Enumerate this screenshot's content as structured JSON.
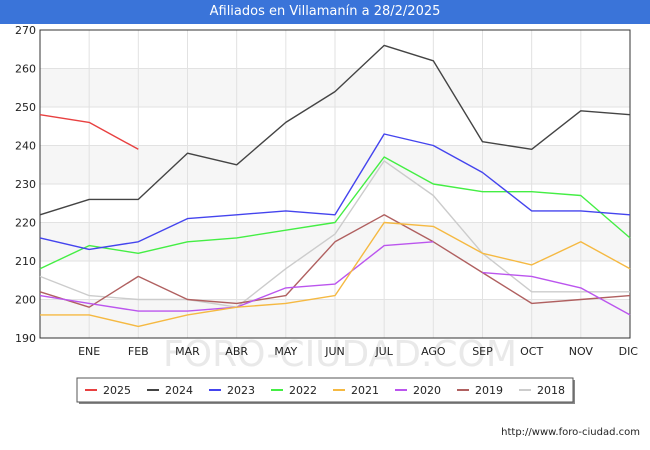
{
  "title": "Afiliados en Villamanín a 28/2/2025",
  "watermark": "FORO-CIUDAD.COM",
  "footer_url": "http://www.foro-ciudad.com",
  "chart_data": {
    "type": "line",
    "title": "Afiliados en Villamanín a 28/2/2025",
    "categories": [
      "",
      "ENE",
      "FEB",
      "MAR",
      "ABR",
      "MAY",
      "JUN",
      "JUL",
      "AGO",
      "SEP",
      "OCT",
      "NOV",
      "DIC"
    ],
    "ylim": [
      190,
      270
    ],
    "yticks": [
      190,
      200,
      210,
      220,
      230,
      240,
      250,
      260,
      270
    ],
    "grid": true,
    "legend_position": "bottom",
    "series": [
      {
        "name": "2025",
        "color": "#e84040",
        "values": [
          248,
          246,
          239,
          null,
          null,
          null,
          null,
          null,
          null,
          null,
          null,
          null,
          null
        ]
      },
      {
        "name": "2024",
        "color": "#444444",
        "values": [
          222,
          226,
          226,
          238,
          235,
          246,
          254,
          266,
          262,
          241,
          239,
          249,
          248
        ]
      },
      {
        "name": "2023",
        "color": "#4444ee",
        "values": [
          216,
          213,
          215,
          221,
          222,
          223,
          222,
          243,
          240,
          233,
          223,
          223,
          222
        ]
      },
      {
        "name": "2022",
        "color": "#44ee44",
        "values": [
          208,
          214,
          212,
          215,
          216,
          218,
          220,
          237,
          230,
          228,
          228,
          227,
          216
        ]
      },
      {
        "name": "2021",
        "color": "#f5b942",
        "values": [
          196,
          196,
          193,
          196,
          198,
          199,
          201,
          220,
          219,
          212,
          209,
          215,
          208
        ]
      },
      {
        "name": "2020",
        "color": "#bb55ee",
        "values": [
          201,
          199,
          197,
          197,
          198,
          203,
          204,
          214,
          215,
          null,
          null,
          null,
          null
        ]
      },
      {
        "name": "2020",
        "color": "#bb55ee",
        "values": [
          null,
          null,
          null,
          null,
          null,
          null,
          null,
          null,
          null,
          207,
          206,
          203,
          196
        ]
      },
      {
        "name": "2019",
        "color": "#b06060",
        "values": [
          202,
          198,
          206,
          200,
          199,
          201,
          215,
          222,
          215,
          207,
          199,
          200,
          201
        ]
      },
      {
        "name": "2018",
        "color": "#cccccc",
        "values": [
          206,
          201,
          200,
          200,
          198,
          208,
          217,
          236,
          227,
          212,
          202,
          202,
          202
        ]
      }
    ],
    "legend": [
      {
        "name": "2025",
        "color": "#e84040"
      },
      {
        "name": "2024",
        "color": "#444444"
      },
      {
        "name": "2023",
        "color": "#4444ee"
      },
      {
        "name": "2022",
        "color": "#44ee44"
      },
      {
        "name": "2021",
        "color": "#f5b942"
      },
      {
        "name": "2020",
        "color": "#bb55ee"
      },
      {
        "name": "2019",
        "color": "#b06060"
      },
      {
        "name": "2018",
        "color": "#cccccc"
      }
    ]
  }
}
